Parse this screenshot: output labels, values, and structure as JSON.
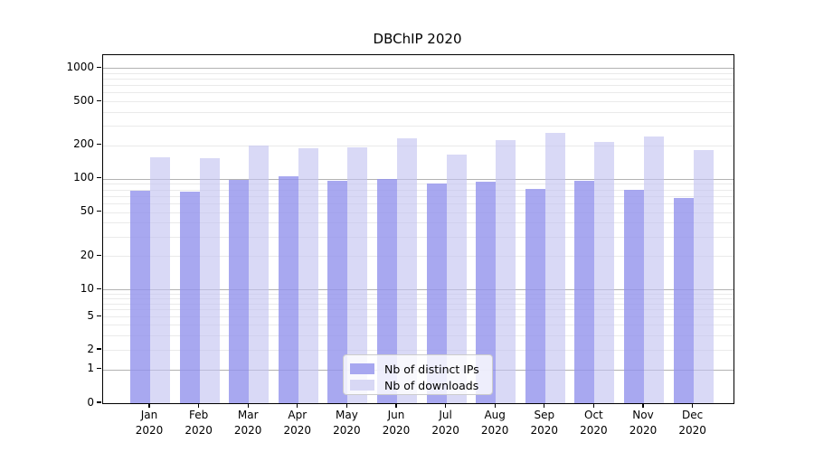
{
  "chart_data": {
    "type": "bar",
    "title": "DBChIP 2020",
    "categories": [
      "Jan",
      "Feb",
      "Mar",
      "Apr",
      "May",
      "Jun",
      "Jul",
      "Aug",
      "Sep",
      "Oct",
      "Nov",
      "Dec"
    ],
    "year": "2020",
    "series": [
      {
        "name": "Nb of distinct IPs",
        "color": "#a7a7f0",
        "fill": "rgba(146,146,236,0.8)",
        "values": [
          78,
          76,
          97,
          106,
          96,
          100,
          91,
          94,
          81,
          95,
          80,
          67
        ]
      },
      {
        "name": "Nb of downloads",
        "color": "#d8d8f5",
        "fill": "rgba(193,193,240,0.62)",
        "values": [
          157,
          152,
          201,
          188,
          191,
          232,
          165,
          222,
          262,
          214,
          240,
          181
        ]
      }
    ],
    "yscale": "symlog",
    "ylabel": "",
    "xlabel": "",
    "ytick_values": [
      1000,
      500,
      200,
      100,
      50,
      20,
      10,
      5,
      2,
      1,
      0
    ],
    "ytick_labels": [
      "1000",
      "500",
      "200",
      "100",
      "50",
      "20",
      "10",
      "5",
      "2",
      "1",
      "0"
    ],
    "major_grid_values": [
      1,
      10,
      100,
      1000
    ],
    "minor_grid_values": [
      2,
      3,
      4,
      5,
      6,
      7,
      8,
      9,
      20,
      30,
      40,
      50,
      60,
      70,
      80,
      90,
      200,
      300,
      400,
      500,
      600,
      700,
      800,
      900
    ],
    "ylim": [
      0,
      1340
    ],
    "grid": true,
    "legend_position": "lower center",
    "colors": {
      "background": "#ffffff",
      "axis": "#000000",
      "text": "#000000",
      "major_grid": "#b2b2b2",
      "minor_grid": "#eaeaea",
      "legend_border": "#cccccc",
      "legend_background": "rgba(255,255,255,0.8)"
    }
  }
}
